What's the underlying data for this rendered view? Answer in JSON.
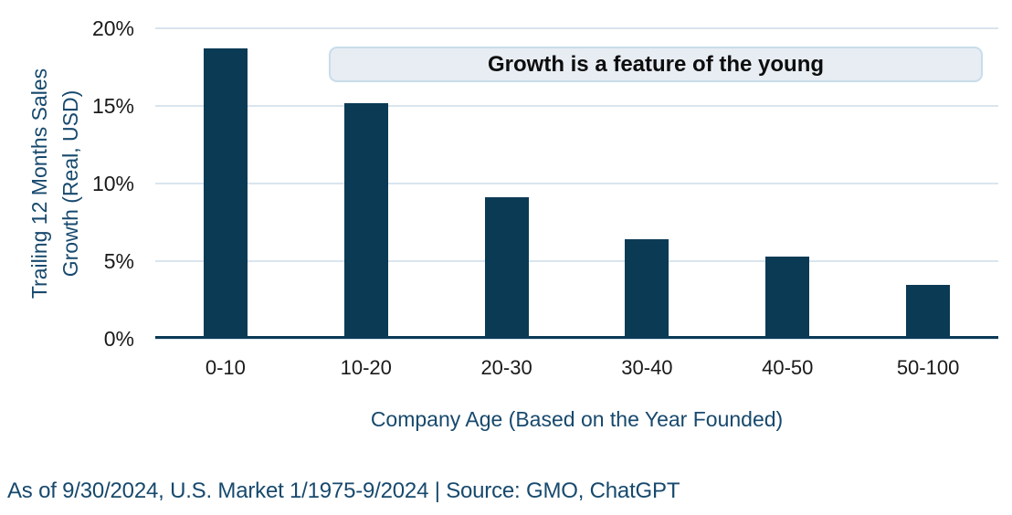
{
  "figure": {
    "banner": "Growth is a feature of the young",
    "ylabel_line1": "Trailing 12 Months Sales",
    "ylabel_line2": "Growth (Real, USD)",
    "xlabel": "Company Age (Based on the Year Founded)",
    "footer": "As of 9/30/2024, U.S. Market 1/1975-9/2024 | Source: GMO, ChatGPT"
  },
  "chart_data": {
    "type": "bar",
    "categories": [
      "0-10",
      "10-20",
      "20-30",
      "30-40",
      "40-50",
      "50-100"
    ],
    "values": [
      18.7,
      15.2,
      9.1,
      6.4,
      5.3,
      3.5
    ],
    "title": "Growth is a feature of the young",
    "xlabel": "Company Age (Based on the Year Founded)",
    "ylabel": "Trailing 12 Months Sales Growth (Real, USD)",
    "ylim": [
      0,
      20
    ],
    "ytick_values": [
      0,
      5,
      10,
      15,
      20
    ],
    "ytick_labels": [
      "0%",
      "5%",
      "10%",
      "15%",
      "20%"
    ],
    "grid": true,
    "legend": false,
    "annotation": "Growth is a feature of the young",
    "source_note": "As of 9/30/2024, U.S. Market 1/1975-9/2024 | Source: GMO, ChatGPT"
  },
  "colors": {
    "bar": "#0b3a55",
    "axis_line": "#0b3a55",
    "teal_text": "#17496d",
    "grid_line": "#d9e5ef",
    "banner_bg": "#e7edf3",
    "banner_border": "#c8dcea",
    "tick_text": "#1a1a1a"
  }
}
